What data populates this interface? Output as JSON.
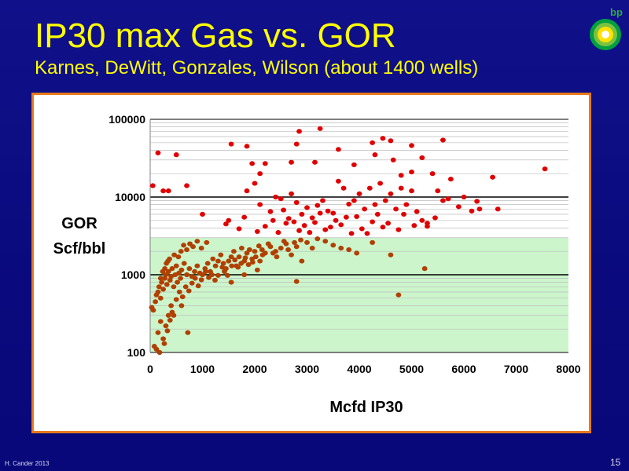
{
  "slide": {
    "title": "IP30 max Gas vs. GOR",
    "subtitle": "Karnes, DeWitt, Gonzales, Wilson  (about 1400 wells)",
    "logo_text": "bp",
    "footer_credit": "H. Cander  2013",
    "page_number": "15"
  },
  "colors": {
    "high_gor_points": "#e00000",
    "low_gor_points": "#b04000",
    "shaded_region": "#ccf5cc",
    "frame_border": "#e87a1a",
    "title": "#ffff00"
  },
  "chart_data": {
    "type": "scatter",
    "title": "",
    "xlabel": "Mcfd  IP30",
    "ylabel_lines": [
      "GOR",
      "Scf/bbl"
    ],
    "xlim": [
      0,
      8000
    ],
    "ylim": [
      100,
      100000
    ],
    "yscale": "log",
    "xticks": [
      0,
      1000,
      2000,
      3000,
      4000,
      5000,
      6000,
      7000,
      8000
    ],
    "yticks": [
      100,
      1000,
      10000,
      100000
    ],
    "xtick_labels": [
      "0",
      "1000",
      "2000",
      "3000",
      "4000",
      "5000",
      "6000",
      "7000",
      "8000"
    ],
    "ytick_labels": [
      "100",
      "1000",
      "10000",
      "100000"
    ],
    "grid": "horizontal minor + major",
    "shaded_band": {
      "y_min": 100,
      "y_max": 3000,
      "x_min": 0,
      "x_max": 8000
    },
    "series": [
      {
        "color": "#e00000",
        "points": [
          [
            150,
            37000
          ],
          [
            500,
            35000
          ],
          [
            50,
            14000
          ],
          [
            1550,
            48000
          ],
          [
            1850,
            45000
          ],
          [
            2850,
            70000
          ],
          [
            3250,
            76000
          ],
          [
            2800,
            48000
          ],
          [
            4250,
            50000
          ],
          [
            4450,
            57000
          ],
          [
            4600,
            53000
          ],
          [
            5000,
            46000
          ],
          [
            5600,
            54000
          ],
          [
            1950,
            27000
          ],
          [
            2200,
            27000
          ],
          [
            2100,
            20000
          ],
          [
            2700,
            28000
          ],
          [
            3150,
            28000
          ],
          [
            3600,
            41000
          ],
          [
            3900,
            26000
          ],
          [
            4300,
            35000
          ],
          [
            4650,
            30000
          ],
          [
            4800,
            19000
          ],
          [
            5000,
            21000
          ],
          [
            5200,
            32000
          ],
          [
            5400,
            20000
          ],
          [
            6550,
            18000
          ],
          [
            7550,
            23000
          ],
          [
            250,
            12000
          ],
          [
            350,
            12000
          ],
          [
            700,
            14000
          ],
          [
            1000,
            6000
          ],
          [
            1450,
            4500
          ],
          [
            1500,
            5000
          ],
          [
            1700,
            3900
          ],
          [
            1800,
            5500
          ],
          [
            1850,
            12000
          ],
          [
            2000,
            15000
          ],
          [
            2100,
            8000
          ],
          [
            2300,
            6500
          ],
          [
            2400,
            10000
          ],
          [
            2500,
            9500
          ],
          [
            2600,
            4600
          ],
          [
            2700,
            11000
          ],
          [
            2800,
            8500
          ],
          [
            2900,
            6000
          ],
          [
            3000,
            7300
          ],
          [
            3100,
            5400
          ],
          [
            3200,
            7800
          ],
          [
            3300,
            9000
          ],
          [
            3400,
            6600
          ],
          [
            3500,
            6200
          ],
          [
            3600,
            16000
          ],
          [
            3700,
            13000
          ],
          [
            3800,
            8100
          ],
          [
            3900,
            9000
          ],
          [
            4000,
            11000
          ],
          [
            4100,
            7000
          ],
          [
            4200,
            13000
          ],
          [
            4300,
            8000
          ],
          [
            4400,
            15000
          ],
          [
            4500,
            9000
          ],
          [
            4600,
            11000
          ],
          [
            4700,
            7000
          ],
          [
            4800,
            13000
          ],
          [
            4900,
            8000
          ],
          [
            5000,
            12000
          ],
          [
            5100,
            6500
          ],
          [
            5200,
            5000
          ],
          [
            5300,
            4200
          ],
          [
            5500,
            12000
          ],
          [
            5600,
            9000
          ],
          [
            5750,
            17000
          ],
          [
            6000,
            10000
          ],
          [
            6150,
            6600
          ],
          [
            6300,
            7000
          ],
          [
            6650,
            7000
          ],
          [
            2050,
            3600
          ],
          [
            2200,
            4200
          ],
          [
            2350,
            5000
          ],
          [
            2450,
            3500
          ],
          [
            2550,
            6800
          ],
          [
            2650,
            5300
          ],
          [
            2750,
            4800
          ],
          [
            2850,
            3700
          ],
          [
            2950,
            4300
          ],
          [
            3050,
            3500
          ],
          [
            3150,
            4700
          ],
          [
            3250,
            6200
          ],
          [
            3350,
            3800
          ],
          [
            3450,
            4100
          ],
          [
            3550,
            5000
          ],
          [
            3650,
            4400
          ],
          [
            3750,
            5500
          ],
          [
            3850,
            3400
          ],
          [
            3950,
            5600
          ],
          [
            4050,
            3900
          ],
          [
            4150,
            3400
          ],
          [
            4250,
            4800
          ],
          [
            4350,
            6000
          ],
          [
            4450,
            4100
          ],
          [
            4550,
            4600
          ],
          [
            4750,
            3800
          ],
          [
            4850,
            6000
          ],
          [
            5050,
            4300
          ],
          [
            5300,
            4600
          ],
          [
            5450,
            5400
          ],
          [
            5700,
            9500
          ],
          [
            5900,
            7500
          ],
          [
            6250,
            8800
          ]
        ]
      },
      {
        "color": "#b04000",
        "points": [
          [
            30,
            380
          ],
          [
            60,
            350
          ],
          [
            100,
            450
          ],
          [
            120,
            550
          ],
          [
            150,
            600
          ],
          [
            170,
            700
          ],
          [
            200,
            500
          ],
          [
            220,
            800
          ],
          [
            250,
            650
          ],
          [
            280,
            900
          ],
          [
            300,
            1000
          ],
          [
            320,
            750
          ],
          [
            350,
            1100
          ],
          [
            380,
            850
          ],
          [
            400,
            950
          ],
          [
            420,
            1200
          ],
          [
            450,
            700
          ],
          [
            480,
            1000
          ],
          [
            500,
            1300
          ],
          [
            520,
            800
          ],
          [
            550,
            1050
          ],
          [
            580,
            900
          ],
          [
            600,
            1150
          ],
          [
            650,
            1400
          ],
          [
            700,
            1000
          ],
          [
            750,
            1200
          ],
          [
            800,
            950
          ],
          [
            850,
            1100
          ],
          [
            900,
            1300
          ],
          [
            950,
            1050
          ],
          [
            1000,
            1000
          ],
          [
            1050,
            1200
          ],
          [
            1100,
            1400
          ],
          [
            1150,
            1100
          ],
          [
            1200,
            1600
          ],
          [
            1250,
            1300
          ],
          [
            1300,
            1500
          ],
          [
            1350,
            1800
          ],
          [
            1400,
            1400
          ],
          [
            1450,
            1200
          ],
          [
            1500,
            1500
          ],
          [
            1550,
            1700
          ],
          [
            1600,
            2000
          ],
          [
            1650,
            1300
          ],
          [
            1700,
            1700
          ],
          [
            1750,
            2200
          ],
          [
            1800,
            1500
          ],
          [
            1850,
            1900
          ],
          [
            1900,
            2100
          ],
          [
            1950,
            1600
          ],
          [
            2000,
            2000
          ],
          [
            2100,
            1500
          ],
          [
            2150,
            1800
          ],
          [
            2200,
            1900
          ],
          [
            2300,
            2300
          ],
          [
            2350,
            1900
          ],
          [
            2400,
            2000
          ],
          [
            2500,
            2200
          ],
          [
            2600,
            2500
          ],
          [
            2700,
            1800
          ],
          [
            2800,
            2300
          ],
          [
            2900,
            1500
          ],
          [
            3000,
            2600
          ],
          [
            3200,
            2900
          ],
          [
            3500,
            2400
          ],
          [
            3800,
            2100
          ],
          [
            4600,
            1800
          ],
          [
            4750,
            550
          ],
          [
            5250,
            1200
          ],
          [
            2800,
            820
          ],
          [
            1550,
            800
          ],
          [
            1800,
            1000
          ],
          [
            2050,
            1150
          ],
          [
            80,
            120
          ],
          [
            150,
            180
          ],
          [
            200,
            250
          ],
          [
            250,
            150
          ],
          [
            300,
            220
          ],
          [
            350,
            300
          ],
          [
            400,
            400
          ],
          [
            450,
            300
          ],
          [
            600,
            400
          ],
          [
            720,
            180
          ],
          [
            120,
            110
          ],
          [
            180,
            100
          ],
          [
            270,
            130
          ],
          [
            330,
            190
          ],
          [
            380,
            260
          ],
          [
            420,
            330
          ],
          [
            500,
            480
          ],
          [
            560,
            600
          ],
          [
            620,
            520
          ],
          [
            680,
            700
          ],
          [
            740,
            620
          ],
          [
            800,
            780
          ],
          [
            860,
            900
          ],
          [
            920,
            720
          ],
          [
            980,
            860
          ],
          [
            1060,
            1100
          ],
          [
            1120,
            920
          ],
          [
            1180,
            1000
          ],
          [
            1240,
            850
          ],
          [
            1300,
            980
          ],
          [
            1380,
            1250
          ],
          [
            1420,
            1100
          ],
          [
            1480,
            980
          ],
          [
            1560,
            1300
          ],
          [
            1620,
            1550
          ],
          [
            1680,
            1250
          ],
          [
            1740,
            1400
          ],
          [
            1820,
            1650
          ],
          [
            1880,
            1350
          ],
          [
            1960,
            1450
          ],
          [
            2020,
            1700
          ],
          [
            2080,
            2350
          ],
          [
            2140,
            2100
          ],
          [
            2260,
            2500
          ],
          [
            2420,
            1700
          ],
          [
            2560,
            2700
          ],
          [
            2640,
            2100
          ],
          [
            2760,
            2600
          ],
          [
            2880,
            2800
          ],
          [
            3100,
            2200
          ],
          [
            3350,
            2700
          ],
          [
            3650,
            2200
          ],
          [
            3950,
            1900
          ],
          [
            4250,
            2600
          ],
          [
            200,
            900
          ],
          [
            240,
            1100
          ],
          [
            280,
            1200
          ],
          [
            310,
            1400
          ],
          [
            340,
            1500
          ],
          [
            370,
            1600
          ],
          [
            460,
            1800
          ],
          [
            540,
            1700
          ],
          [
            590,
            2000
          ],
          [
            640,
            2400
          ],
          [
            700,
            2100
          ],
          [
            760,
            2500
          ],
          [
            820,
            2300
          ],
          [
            900,
            2700
          ],
          [
            980,
            2200
          ],
          [
            1080,
            2600
          ]
        ]
      }
    ]
  }
}
